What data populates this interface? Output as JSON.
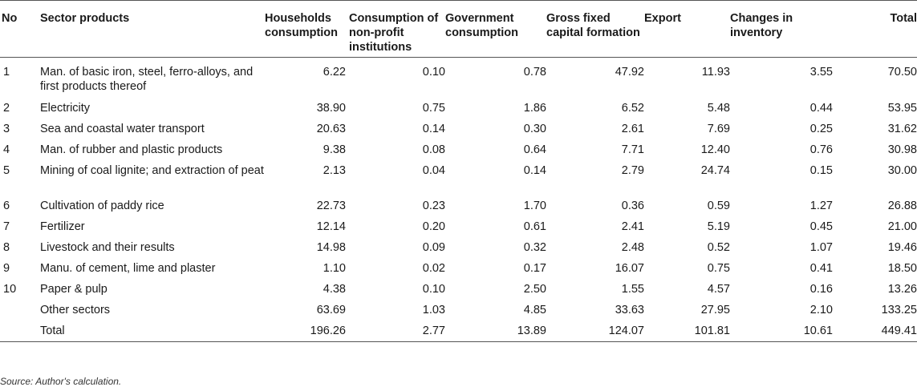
{
  "table": {
    "headers": {
      "no": "No",
      "sector": "Sector products",
      "households": "Households consumption",
      "nonprofit": "Consumption of non-profit institutions",
      "government": "Government consumption",
      "gfcf": "Gross fixed capital formation",
      "export": "Export",
      "inventory": "Changes in inventory",
      "total": "Total"
    },
    "rows": [
      {
        "no": "1",
        "sector": "Man. of basic iron, steel, ferro-alloys, and first products thereof",
        "households": "6.22",
        "nonprofit": "0.10",
        "government": "0.78",
        "gfcf": "47.92",
        "export": "11.93",
        "inventory": "3.55",
        "total": "70.50"
      },
      {
        "no": "2",
        "sector": "Electricity",
        "households": "38.90",
        "nonprofit": "0.75",
        "government": "1.86",
        "gfcf": "6.52",
        "export": "5.48",
        "inventory": "0.44",
        "total": "53.95"
      },
      {
        "no": "3",
        "sector": "Sea and coastal water transport",
        "households": "20.63",
        "nonprofit": "0.14",
        "government": "0.30",
        "gfcf": "2.61",
        "export": "7.69",
        "inventory": "0.25",
        "total": "31.62"
      },
      {
        "no": "4",
        "sector": "Man. of rubber and plastic products",
        "households": "9.38",
        "nonprofit": "0.08",
        "government": "0.64",
        "gfcf": "7.71",
        "export": "12.40",
        "inventory": "0.76",
        "total": "30.98"
      },
      {
        "no": "5",
        "sector": "Mining of coal lignite; and extraction of peat",
        "households": "2.13",
        "nonprofit": "0.04",
        "government": "0.14",
        "gfcf": "2.79",
        "export": "24.74",
        "inventory": "0.15",
        "total": "30.00"
      },
      {
        "no": "6",
        "sector": "Cultivation of paddy rice",
        "households": "22.73",
        "nonprofit": "0.23",
        "government": "1.70",
        "gfcf": "0.36",
        "export": "0.59",
        "inventory": "1.27",
        "total": "26.88"
      },
      {
        "no": "7",
        "sector": "Fertilizer",
        "households": "12.14",
        "nonprofit": "0.20",
        "government": "0.61",
        "gfcf": "2.41",
        "export": "5.19",
        "inventory": "0.45",
        "total": "21.00"
      },
      {
        "no": "8",
        "sector": "Livestock and their results",
        "households": "14.98",
        "nonprofit": "0.09",
        "government": "0.32",
        "gfcf": "2.48",
        "export": "0.52",
        "inventory": "1.07",
        "total": "19.46"
      },
      {
        "no": "9",
        "sector": "Manu. of cement, lime and plaster",
        "households": "1.10",
        "nonprofit": "0.02",
        "government": "0.17",
        "gfcf": "16.07",
        "export": "0.75",
        "inventory": "0.41",
        "total": "18.50"
      },
      {
        "no": "10",
        "sector": "Paper & pulp",
        "households": "4.38",
        "nonprofit": "0.10",
        "government": "2.50",
        "gfcf": "1.55",
        "export": "4.57",
        "inventory": "0.16",
        "total": "13.26"
      },
      {
        "no": "",
        "sector": "Other sectors",
        "households": "63.69",
        "nonprofit": "1.03",
        "government": "4.85",
        "gfcf": "33.63",
        "export": "27.95",
        "inventory": "2.10",
        "total": "133.25"
      },
      {
        "no": "",
        "sector": "Total",
        "households": "196.26",
        "nonprofit": "2.77",
        "government": "13.89",
        "gfcf": "124.07",
        "export": "101.81",
        "inventory": "10.61",
        "total": "449.41"
      }
    ]
  },
  "source": "Source: Author's calculation."
}
